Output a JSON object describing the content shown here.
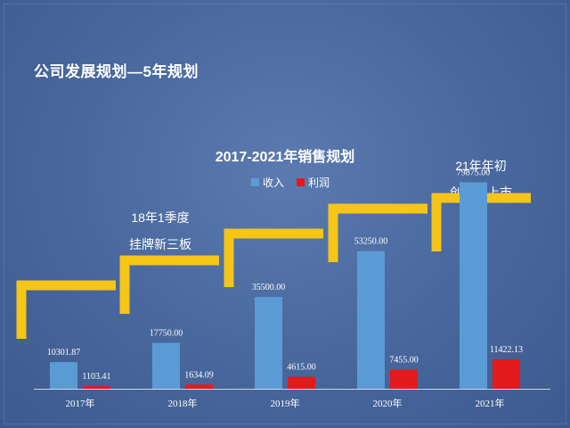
{
  "page": {
    "title": "公司发展规划—5年规划"
  },
  "annotations": [
    {
      "line1": "18年1季度",
      "line2": "挂牌新三板"
    },
    {
      "line1": "21年年初",
      "line2": "创业板上市"
    }
  ],
  "chart_data": {
    "type": "bar",
    "title": "2017-2021年销售规划",
    "categories": [
      "2017年",
      "2018年",
      "2019年",
      "2020年",
      "2021年"
    ],
    "series": [
      {
        "name": "收入",
        "color": "#5b9bd5",
        "values": [
          10301.87,
          17750.0,
          35500.0,
          53250.0,
          79875.0
        ],
        "labels": [
          "10301.87",
          "17750.00",
          "35500.00",
          "53250.00",
          "79875.00"
        ]
      },
      {
        "name": "利润",
        "color": "#e31a1c",
        "values": [
          1103.41,
          1634.09,
          4615.0,
          7455.0,
          11422.13
        ],
        "labels": [
          "1103.41",
          "1634.09",
          "4615.00",
          "7455.00",
          "11422.13"
        ]
      }
    ],
    "ylim": [
      0,
      100000
    ],
    "xlabel": "",
    "ylabel": "",
    "grid": false,
    "legend": "top-center",
    "step_decoration_color": "#f5c518"
  }
}
